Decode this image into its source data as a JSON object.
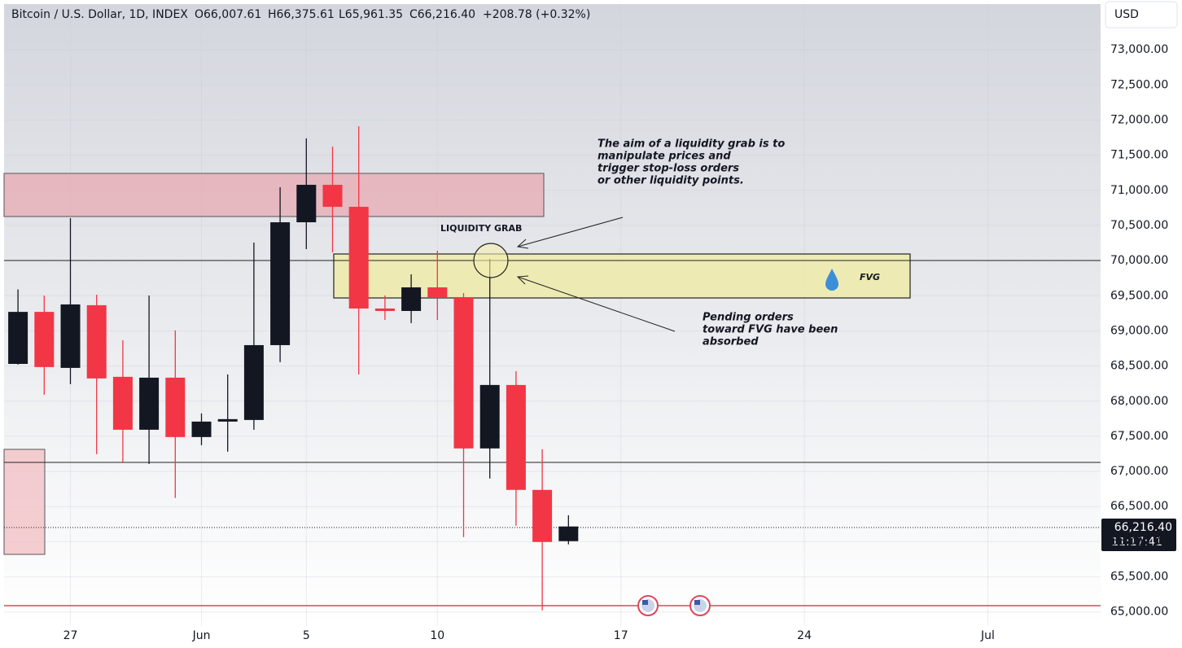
{
  "chart_data": {
    "type": "candlestick",
    "header": {
      "symbol": "Bitcoin / U.S. Dollar, 1D, INDEX",
      "open": "O66,007.61",
      "high": "H66,375.61",
      "low": "L65,961.35",
      "close": "C66,216.40",
      "change": "+208.78 (+0.32%)"
    },
    "currency": "USD",
    "last_price_label": "66,216.40",
    "countdown": "11:17:41",
    "annotations": {
      "aim": [
        "The aim of a liquidity grab is to",
        "manipulate prices and",
        "trigger stop-loss orders",
        "or other liquidity points."
      ],
      "liquidity_grab": "LIQUIDITY GRAB",
      "pending": [
        "Pending orders",
        "toward FVG have been",
        "absorbed"
      ],
      "fvg": "FVG"
    },
    "categories": [
      null,
      null,
      "27",
      null,
      null,
      null,
      null,
      "Jun",
      null,
      null,
      null,
      "5",
      null,
      null,
      null,
      null,
      "10",
      null,
      null,
      null,
      null,
      null,
      null,
      "17",
      null,
      null,
      null,
      null,
      null,
      null,
      "24",
      null,
      null,
      null,
      null,
      null,
      null,
      "Jul",
      null,
      null,
      null,
      null
    ],
    "open": [
      68530,
      69270,
      68473,
      69365,
      68346,
      67593,
      68334,
      67489,
      67709,
      67732,
      68797,
      70545,
      71078,
      70765,
      69318,
      69283,
      69619,
      69480,
      67327,
      68230,
      66737,
      66007.61,
      null,
      null,
      null,
      null,
      null,
      null,
      null,
      null,
      null,
      null,
      null,
      null,
      null,
      null,
      null,
      null,
      null,
      null,
      null,
      null
    ],
    "high": [
      69590,
      69503,
      70603,
      69515,
      68867,
      69503,
      69006,
      67825,
      68380,
      70256,
      71043,
      71738,
      71622,
      71911,
      69503,
      69804,
      70140,
      69538,
      70024,
      68427,
      67315,
      66375.61,
      null,
      null,
      null,
      null,
      null,
      null,
      null,
      null,
      null,
      null,
      null,
      null,
      null,
      null,
      null,
      null,
      null,
      null,
      null,
      null
    ],
    "low": [
      68520,
      68091,
      68242,
      67246,
      67130,
      67107,
      66621,
      67373,
      67281,
      67593,
      68554,
      70163,
      70117,
      68380,
      69156,
      69110,
      69156,
      66065,
      66899,
      66227,
      65023,
      65961.35,
      null,
      null,
      null,
      null,
      null,
      null,
      null,
      null,
      null,
      null,
      null,
      null,
      null,
      null,
      null,
      null,
      null,
      null,
      null,
      null
    ],
    "close": [
      69270,
      68485,
      69376,
      68323,
      67593,
      68334,
      67489,
      67709,
      67744,
      68797,
      70545,
      71078,
      70765,
      69318,
      69283,
      69619,
      69480,
      67327,
      68230,
      66737,
      65996,
      66216.4,
      null,
      null,
      null,
      null,
      null,
      null,
      null,
      null,
      null,
      null,
      null,
      null,
      null,
      null,
      null,
      null,
      null,
      null,
      null,
      null
    ],
    "up_color": "#131722",
    "down_color": "#f23645",
    "ylim": [
      64800,
      73650
    ],
    "yticks": [
      {
        "value": 65000,
        "label": "65,000.00"
      },
      {
        "value": 65500,
        "label": "65,500.00"
      },
      {
        "value": 66000,
        "label": "66,000.00"
      },
      {
        "value": 66500,
        "label": "66,500.00"
      },
      {
        "value": 67000,
        "label": "67,000.00"
      },
      {
        "value": 67500,
        "label": "67,500.00"
      },
      {
        "value": 68000,
        "label": "68,000.00"
      },
      {
        "value": 68500,
        "label": "68,500.00"
      },
      {
        "value": 69000,
        "label": "69,000.00"
      },
      {
        "value": 69500,
        "label": "69,500.00"
      },
      {
        "value": 70000,
        "label": "70,000.00"
      },
      {
        "value": 70500,
        "label": "70,500.00"
      },
      {
        "value": 71000,
        "label": "71,000.00"
      },
      {
        "value": 71500,
        "label": "71,500.00"
      },
      {
        "value": 72000,
        "label": "72,000.00"
      },
      {
        "value": 72500,
        "label": "72,500.00"
      },
      {
        "value": 73000,
        "label": "73,000.00"
      }
    ],
    "grid": true
  }
}
